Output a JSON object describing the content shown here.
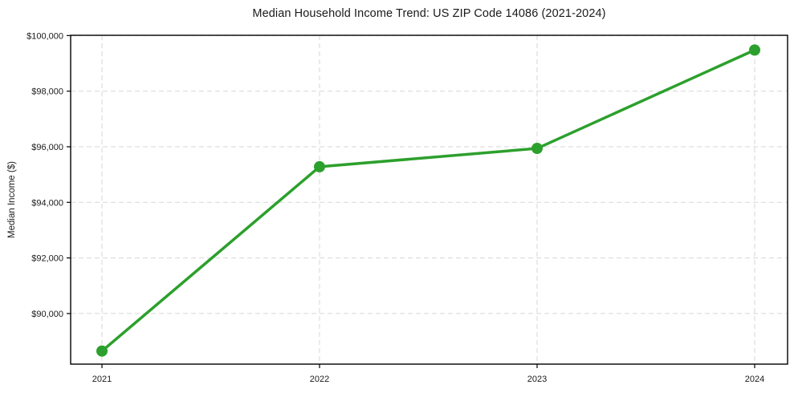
{
  "figure": {
    "title": "Median Household Income Trend: US ZIP Code 14086 (2021-2024)",
    "ylabel": "Median Income ($)"
  },
  "chart_data": {
    "type": "line",
    "title": "Median Household Income Trend: US ZIP Code 14086 (2021-2024)",
    "xlabel": "",
    "ylabel": "Median Income ($)",
    "categories": [
      "2021",
      "2022",
      "2023",
      "2024"
    ],
    "x": [
      2021,
      2022,
      2023,
      2024
    ],
    "values": [
      88650,
      95280,
      95940,
      99480
    ],
    "yticks": [
      90000,
      92000,
      94000,
      96000,
      98000,
      100000
    ],
    "ytick_labels": [
      "$90,000",
      "$92,000",
      "$94,000",
      "$96,000",
      "$98,000",
      "$100,000"
    ],
    "ylim": [
      88180,
      100010
    ],
    "grid": true,
    "grid_style": "dashed",
    "grid_color": "#d7d7d7",
    "line_color": "#2ca02c",
    "marker": "circle",
    "marker_color": "#2ca02c",
    "axis_color": "#000000",
    "legend_position": "none"
  }
}
